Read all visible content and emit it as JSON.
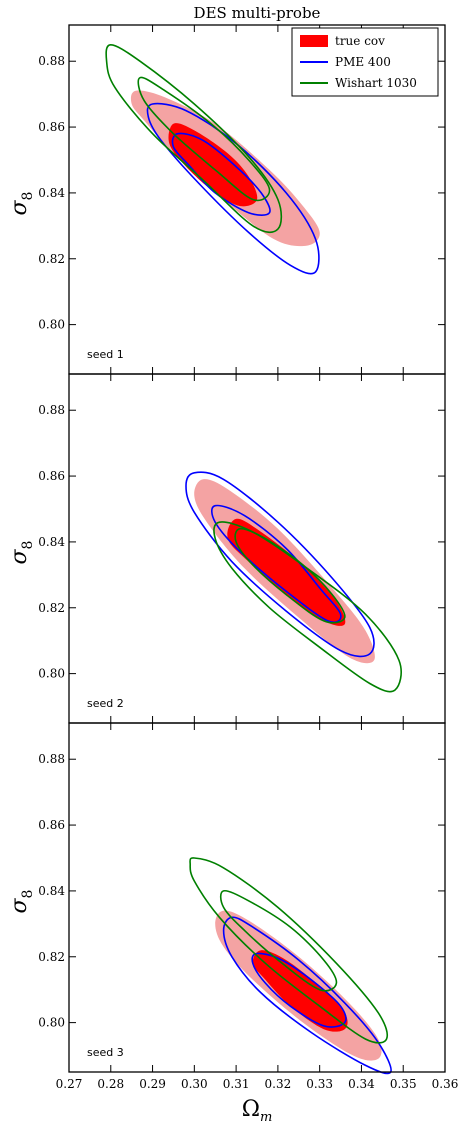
{
  "chart_data": {
    "type": "contour",
    "title": "DES multi-probe",
    "xlabel": "Ω",
    "xlabel_sub": "m",
    "ylabel": "σ",
    "ylabel_sub": "8",
    "xlim": [
      0.27,
      0.36
    ],
    "ylim": [
      0.785,
      0.891
    ],
    "x_ticks": [
      "0.27",
      "0.28",
      "0.29",
      "0.30",
      "0.31",
      "0.32",
      "0.33",
      "0.34",
      "0.35",
      "0.36"
    ],
    "y_ticks": [
      "0.80",
      "0.82",
      "0.84",
      "0.86",
      "0.88"
    ],
    "legend": {
      "placement": "top-right",
      "entries": [
        {
          "label": "true cov",
          "color": "#ff0000",
          "style": "filled"
        },
        {
          "label": "PME 400",
          "color": "#0000ff",
          "style": "line"
        },
        {
          "label": "Wishart 1030",
          "color": "#008000",
          "style": "line"
        }
      ]
    },
    "panels": [
      {
        "label": "seed 1",
        "contours": [
          {
            "series": "true cov",
            "level": "outer",
            "color": "#f4a3a3",
            "points": [
              [
                0.286,
                0.871
              ],
              [
                0.293,
                0.869
              ],
              [
                0.305,
                0.861
              ],
              [
                0.318,
                0.847
              ],
              [
                0.326,
                0.836
              ],
              [
                0.33,
                0.828
              ],
              [
                0.327,
                0.824
              ],
              [
                0.319,
                0.826
              ],
              [
                0.307,
                0.838
              ],
              [
                0.295,
                0.852
              ],
              [
                0.288,
                0.862
              ],
              [
                0.285,
                0.867
              ]
            ]
          },
          {
            "series": "true cov",
            "level": "inner",
            "color": "#ff0000",
            "points": [
              [
                0.295,
                0.861
              ],
              [
                0.3,
                0.859
              ],
              [
                0.308,
                0.852
              ],
              [
                0.313,
                0.845
              ],
              [
                0.315,
                0.838
              ],
              [
                0.311,
                0.836
              ],
              [
                0.305,
                0.84
              ],
              [
                0.298,
                0.848
              ],
              [
                0.294,
                0.855
              ]
            ]
          },
          {
            "series": "PME 400",
            "level": "outer",
            "color": "#0000ff",
            "points": [
              [
                0.29,
                0.867
              ],
              [
                0.298,
                0.865
              ],
              [
                0.31,
                0.855
              ],
              [
                0.322,
                0.84
              ],
              [
                0.329,
                0.826
              ],
              [
                0.329,
                0.816
              ],
              [
                0.323,
                0.818
              ],
              [
                0.313,
                0.828
              ],
              [
                0.301,
                0.843
              ],
              [
                0.292,
                0.856
              ],
              [
                0.289,
                0.863
              ]
            ]
          },
          {
            "series": "PME 400",
            "level": "inner",
            "color": "#0000ff",
            "points": [
              [
                0.296,
                0.858
              ],
              [
                0.302,
                0.856
              ],
              [
                0.31,
                0.848
              ],
              [
                0.316,
                0.84
              ],
              [
                0.318,
                0.834
              ],
              [
                0.313,
                0.834
              ],
              [
                0.305,
                0.84
              ],
              [
                0.299,
                0.848
              ],
              [
                0.295,
                0.854
              ]
            ]
          },
          {
            "series": "Wishart 1030",
            "level": "outer",
            "color": "#008000",
            "points": [
              [
                0.28,
                0.885
              ],
              [
                0.287,
                0.88
              ],
              [
                0.3,
                0.867
              ],
              [
                0.313,
                0.851
              ],
              [
                0.32,
                0.838
              ],
              [
                0.32,
                0.829
              ],
              [
                0.314,
                0.83
              ],
              [
                0.302,
                0.844
              ],
              [
                0.29,
                0.858
              ],
              [
                0.281,
                0.872
              ],
              [
                0.279,
                0.88
              ]
            ]
          },
          {
            "series": "Wishart 1030",
            "level": "inner",
            "color": "#008000",
            "points": [
              [
                0.287,
                0.875
              ],
              [
                0.293,
                0.871
              ],
              [
                0.304,
                0.861
              ],
              [
                0.313,
                0.85
              ],
              [
                0.318,
                0.841
              ],
              [
                0.314,
                0.838
              ],
              [
                0.305,
                0.847
              ],
              [
                0.295,
                0.858
              ],
              [
                0.288,
                0.868
              ]
            ]
          }
        ]
      },
      {
        "label": "seed 2",
        "contours": [
          {
            "series": "true cov",
            "level": "outer",
            "color": "#f4a3a3",
            "points": [
              [
                0.302,
                0.859
              ],
              [
                0.308,
                0.856
              ],
              [
                0.32,
                0.844
              ],
              [
                0.333,
                0.826
              ],
              [
                0.341,
                0.813
              ],
              [
                0.343,
                0.804
              ],
              [
                0.337,
                0.805
              ],
              [
                0.325,
                0.817
              ],
              [
                0.312,
                0.832
              ],
              [
                0.303,
                0.846
              ],
              [
                0.3,
                0.854
              ]
            ]
          },
          {
            "series": "true cov",
            "level": "inner",
            "color": "#ff0000",
            "points": [
              [
                0.31,
                0.847
              ],
              [
                0.316,
                0.843
              ],
              [
                0.326,
                0.833
              ],
              [
                0.334,
                0.822
              ],
              [
                0.336,
                0.815
              ],
              [
                0.331,
                0.816
              ],
              [
                0.322,
                0.824
              ],
              [
                0.313,
                0.834
              ],
              [
                0.308,
                0.841
              ]
            ]
          },
          {
            "series": "PME 400",
            "level": "outer",
            "color": "#0000ff",
            "points": [
              [
                0.3,
                0.861
              ],
              [
                0.307,
                0.859
              ],
              [
                0.32,
                0.846
              ],
              [
                0.333,
                0.829
              ],
              [
                0.342,
                0.814
              ],
              [
                0.342,
                0.806
              ],
              [
                0.335,
                0.807
              ],
              [
                0.322,
                0.819
              ],
              [
                0.309,
                0.834
              ],
              [
                0.3,
                0.849
              ],
              [
                0.298,
                0.857
              ]
            ]
          },
          {
            "series": "PME 400",
            "level": "inner",
            "color": "#0000ff",
            "points": [
              [
                0.305,
                0.851
              ],
              [
                0.312,
                0.848
              ],
              [
                0.322,
                0.838
              ],
              [
                0.33,
                0.826
              ],
              [
                0.335,
                0.818
              ],
              [
                0.332,
                0.816
              ],
              [
                0.322,
                0.825
              ],
              [
                0.311,
                0.837
              ],
              [
                0.305,
                0.846
              ]
            ]
          },
          {
            "series": "Wishart 1030",
            "level": "outer",
            "color": "#008000",
            "points": [
              [
                0.306,
                0.846
              ],
              [
                0.314,
                0.843
              ],
              [
                0.327,
                0.832
              ],
              [
                0.341,
                0.818
              ],
              [
                0.349,
                0.804
              ],
              [
                0.348,
                0.795
              ],
              [
                0.342,
                0.797
              ],
              [
                0.33,
                0.808
              ],
              [
                0.318,
                0.82
              ],
              [
                0.309,
                0.832
              ],
              [
                0.305,
                0.841
              ]
            ]
          },
          {
            "series": "Wishart 1030",
            "level": "inner",
            "color": "#008000",
            "points": [
              [
                0.311,
                0.844
              ],
              [
                0.317,
                0.841
              ],
              [
                0.326,
                0.833
              ],
              [
                0.333,
                0.824
              ],
              [
                0.336,
                0.817
              ],
              [
                0.331,
                0.816
              ],
              [
                0.322,
                0.824
              ],
              [
                0.314,
                0.833
              ],
              [
                0.31,
                0.84
              ]
            ]
          }
        ]
      },
      {
        "label": "seed 3",
        "contours": [
          {
            "series": "true cov",
            "level": "outer",
            "color": "#f4a3a3",
            "points": [
              [
                0.307,
                0.834
              ],
              [
                0.313,
                0.831
              ],
              [
                0.325,
                0.82
              ],
              [
                0.337,
                0.806
              ],
              [
                0.344,
                0.795
              ],
              [
                0.344,
                0.789
              ],
              [
                0.338,
                0.79
              ],
              [
                0.326,
                0.8
              ],
              [
                0.314,
                0.813
              ],
              [
                0.307,
                0.823
              ],
              [
                0.305,
                0.83
              ]
            ]
          },
          {
            "series": "true cov",
            "level": "inner",
            "color": "#ff0000",
            "points": [
              [
                0.316,
                0.822
              ],
              [
                0.322,
                0.819
              ],
              [
                0.33,
                0.811
              ],
              [
                0.336,
                0.803
              ],
              [
                0.336,
                0.798
              ],
              [
                0.331,
                0.798
              ],
              [
                0.323,
                0.805
              ],
              [
                0.317,
                0.813
              ],
              [
                0.314,
                0.818
              ]
            ]
          },
          {
            "series": "PME 400",
            "level": "outer",
            "color": "#0000ff",
            "points": [
              [
                0.309,
                0.832
              ],
              [
                0.314,
                0.829
              ],
              [
                0.325,
                0.819
              ],
              [
                0.336,
                0.806
              ],
              [
                0.344,
                0.794
              ],
              [
                0.347,
                0.785
              ],
              [
                0.341,
                0.787
              ],
              [
                0.328,
                0.797
              ],
              [
                0.316,
                0.809
              ],
              [
                0.309,
                0.82
              ],
              [
                0.307,
                0.828
              ]
            ]
          },
          {
            "series": "PME 400",
            "level": "inner",
            "color": "#0000ff",
            "points": [
              [
                0.315,
                0.821
              ],
              [
                0.321,
                0.819
              ],
              [
                0.329,
                0.812
              ],
              [
                0.335,
                0.805
              ],
              [
                0.336,
                0.8
              ],
              [
                0.331,
                0.799
              ],
              [
                0.323,
                0.805
              ],
              [
                0.317,
                0.812
              ],
              [
                0.314,
                0.818
              ]
            ]
          },
          {
            "series": "Wishart 1030",
            "level": "outer",
            "color": "#008000",
            "points": [
              [
                0.3,
                0.85
              ],
              [
                0.307,
                0.847
              ],
              [
                0.32,
                0.835
              ],
              [
                0.334,
                0.818
              ],
              [
                0.344,
                0.803
              ],
              [
                0.346,
                0.795
              ],
              [
                0.341,
                0.795
              ],
              [
                0.33,
                0.805
              ],
              [
                0.317,
                0.818
              ],
              [
                0.306,
                0.832
              ],
              [
                0.3,
                0.843
              ],
              [
                0.299,
                0.848
              ]
            ]
          },
          {
            "series": "Wishart 1030",
            "level": "inner",
            "color": "#008000",
            "points": [
              [
                0.307,
                0.84
              ],
              [
                0.313,
                0.837
              ],
              [
                0.323,
                0.829
              ],
              [
                0.331,
                0.819
              ],
              [
                0.334,
                0.812
              ],
              [
                0.33,
                0.81
              ],
              [
                0.321,
                0.818
              ],
              [
                0.312,
                0.828
              ],
              [
                0.307,
                0.835
              ]
            ]
          }
        ]
      }
    ]
  }
}
